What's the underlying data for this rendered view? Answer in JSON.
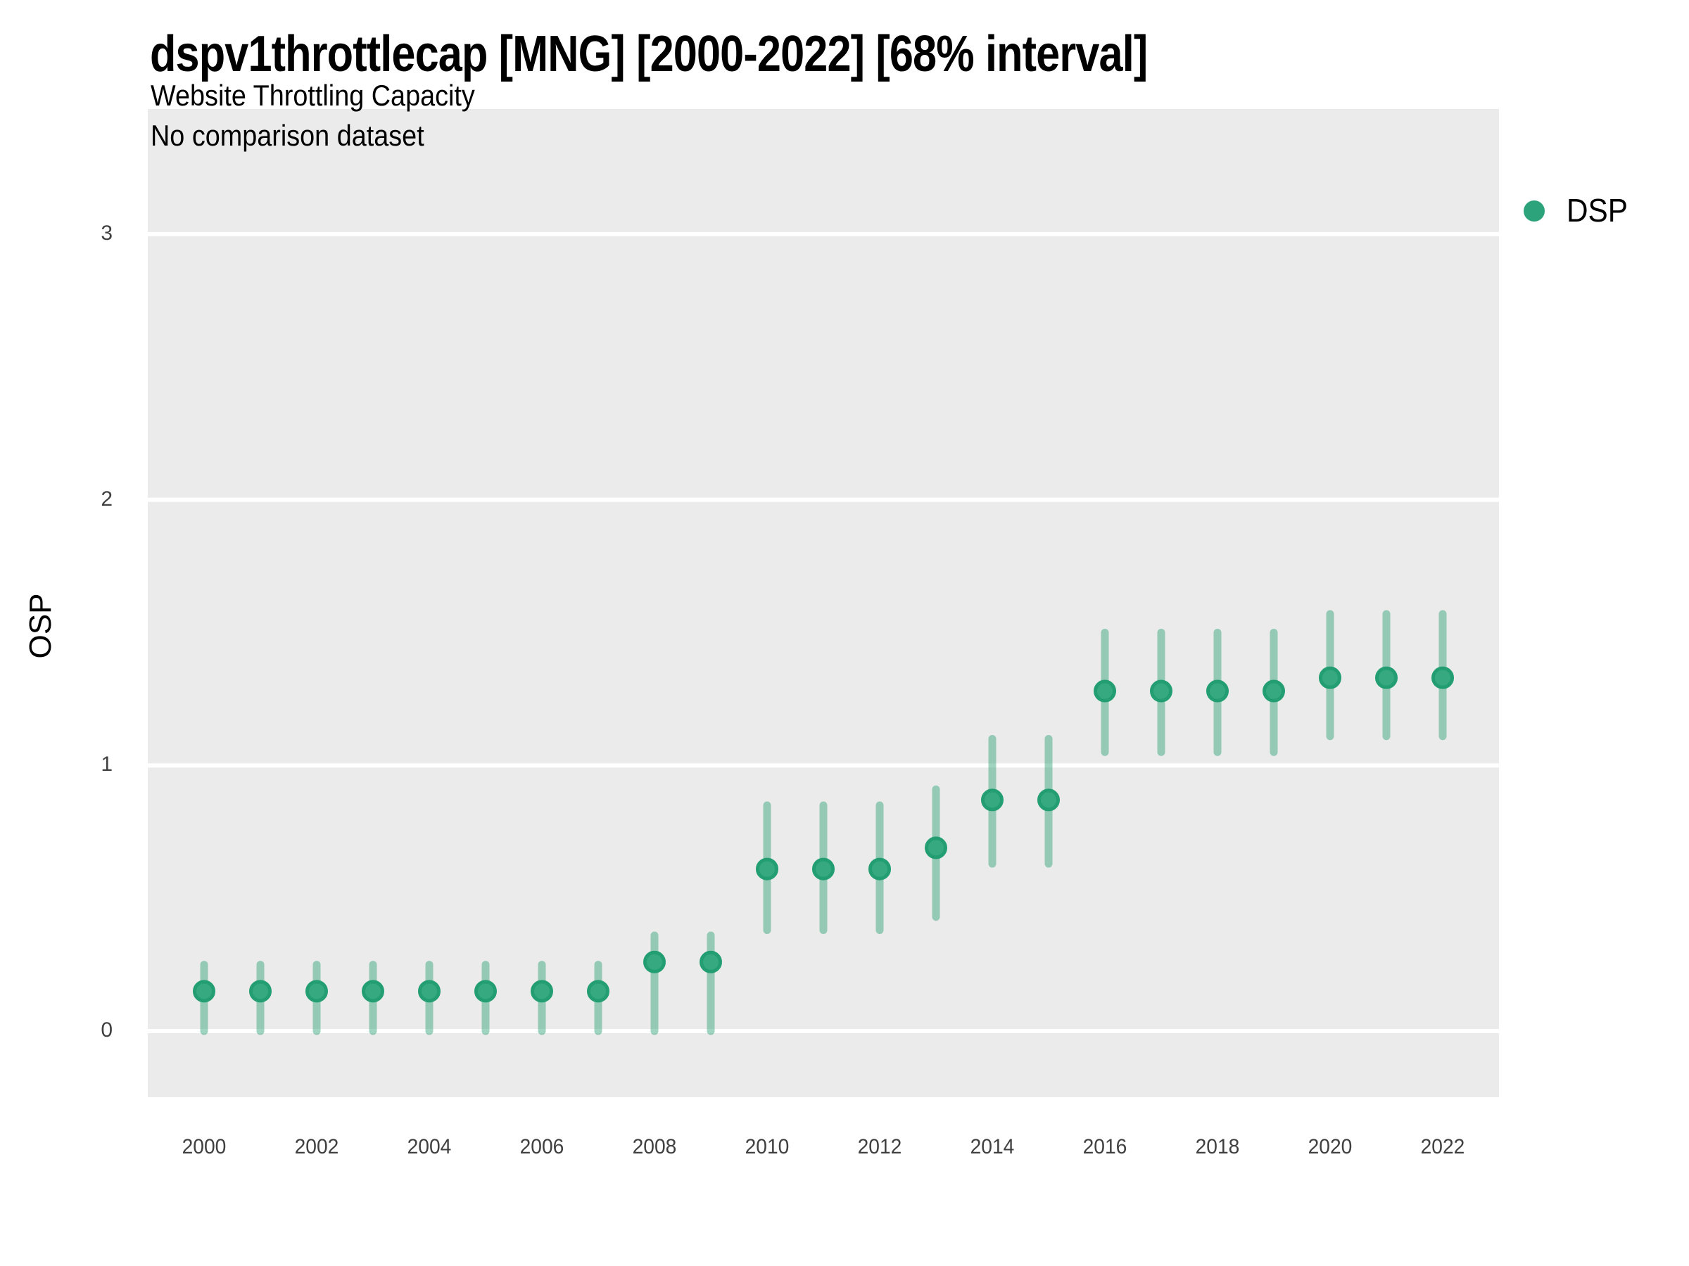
{
  "title": "dspv1throttlecap [MNG] [2000-2022] [68% interval]",
  "subtitle": "Website Throttling Capacity",
  "subtitle2": "No comparison dataset",
  "y_axis_title": "OSP",
  "legend": {
    "label": "DSP",
    "position": "right"
  },
  "colors": {
    "point_fill": "#36a981",
    "point_stroke": "#239e73",
    "interval_bar": "rgba(42,159,115,0.45)",
    "panel_bg": "#ebebeb",
    "gridline": "#ffffff",
    "tick_text": "#404040",
    "legend_dot": "#2da37b"
  },
  "chart_data": {
    "type": "scatter",
    "title": "dspv1throttlecap [MNG] [2000-2022] [68% interval]",
    "subtitle": "Website Throttling Capacity",
    "note": "No comparison dataset",
    "xlabel": "",
    "ylabel": "OSP",
    "interval": "68%",
    "legend_position": "right",
    "grid": "major-horizontal-only",
    "x_ticks": [
      2000,
      2002,
      2004,
      2006,
      2008,
      2010,
      2012,
      2014,
      2016,
      2018,
      2020,
      2022
    ],
    "y_ticks": [
      0,
      1,
      2,
      3
    ],
    "ylim": [
      -0.25,
      3.47
    ],
    "xlim": [
      1999,
      2023
    ],
    "x": [
      2000,
      2001,
      2002,
      2003,
      2004,
      2005,
      2006,
      2007,
      2008,
      2009,
      2010,
      2011,
      2012,
      2013,
      2014,
      2015,
      2016,
      2017,
      2018,
      2019,
      2020,
      2021,
      2022
    ],
    "series": [
      {
        "name": "DSP",
        "mid": [
          0.15,
          0.15,
          0.15,
          0.15,
          0.15,
          0.15,
          0.15,
          0.15,
          0.26,
          0.26,
          0.61,
          0.61,
          0.61,
          0.69,
          0.87,
          0.87,
          1.28,
          1.28,
          1.28,
          1.28,
          1.33,
          1.33,
          1.33
        ],
        "lo": [
          0.0,
          0.0,
          0.0,
          0.0,
          0.0,
          0.0,
          0.0,
          0.0,
          0.0,
          0.0,
          0.38,
          0.38,
          0.38,
          0.43,
          0.63,
          0.63,
          1.05,
          1.05,
          1.05,
          1.05,
          1.11,
          1.11,
          1.11
        ],
        "hi": [
          0.25,
          0.25,
          0.25,
          0.25,
          0.25,
          0.25,
          0.25,
          0.25,
          0.36,
          0.36,
          0.85,
          0.85,
          0.85,
          0.91,
          1.1,
          1.1,
          1.5,
          1.5,
          1.5,
          1.5,
          1.57,
          1.57,
          1.57
        ]
      }
    ]
  }
}
